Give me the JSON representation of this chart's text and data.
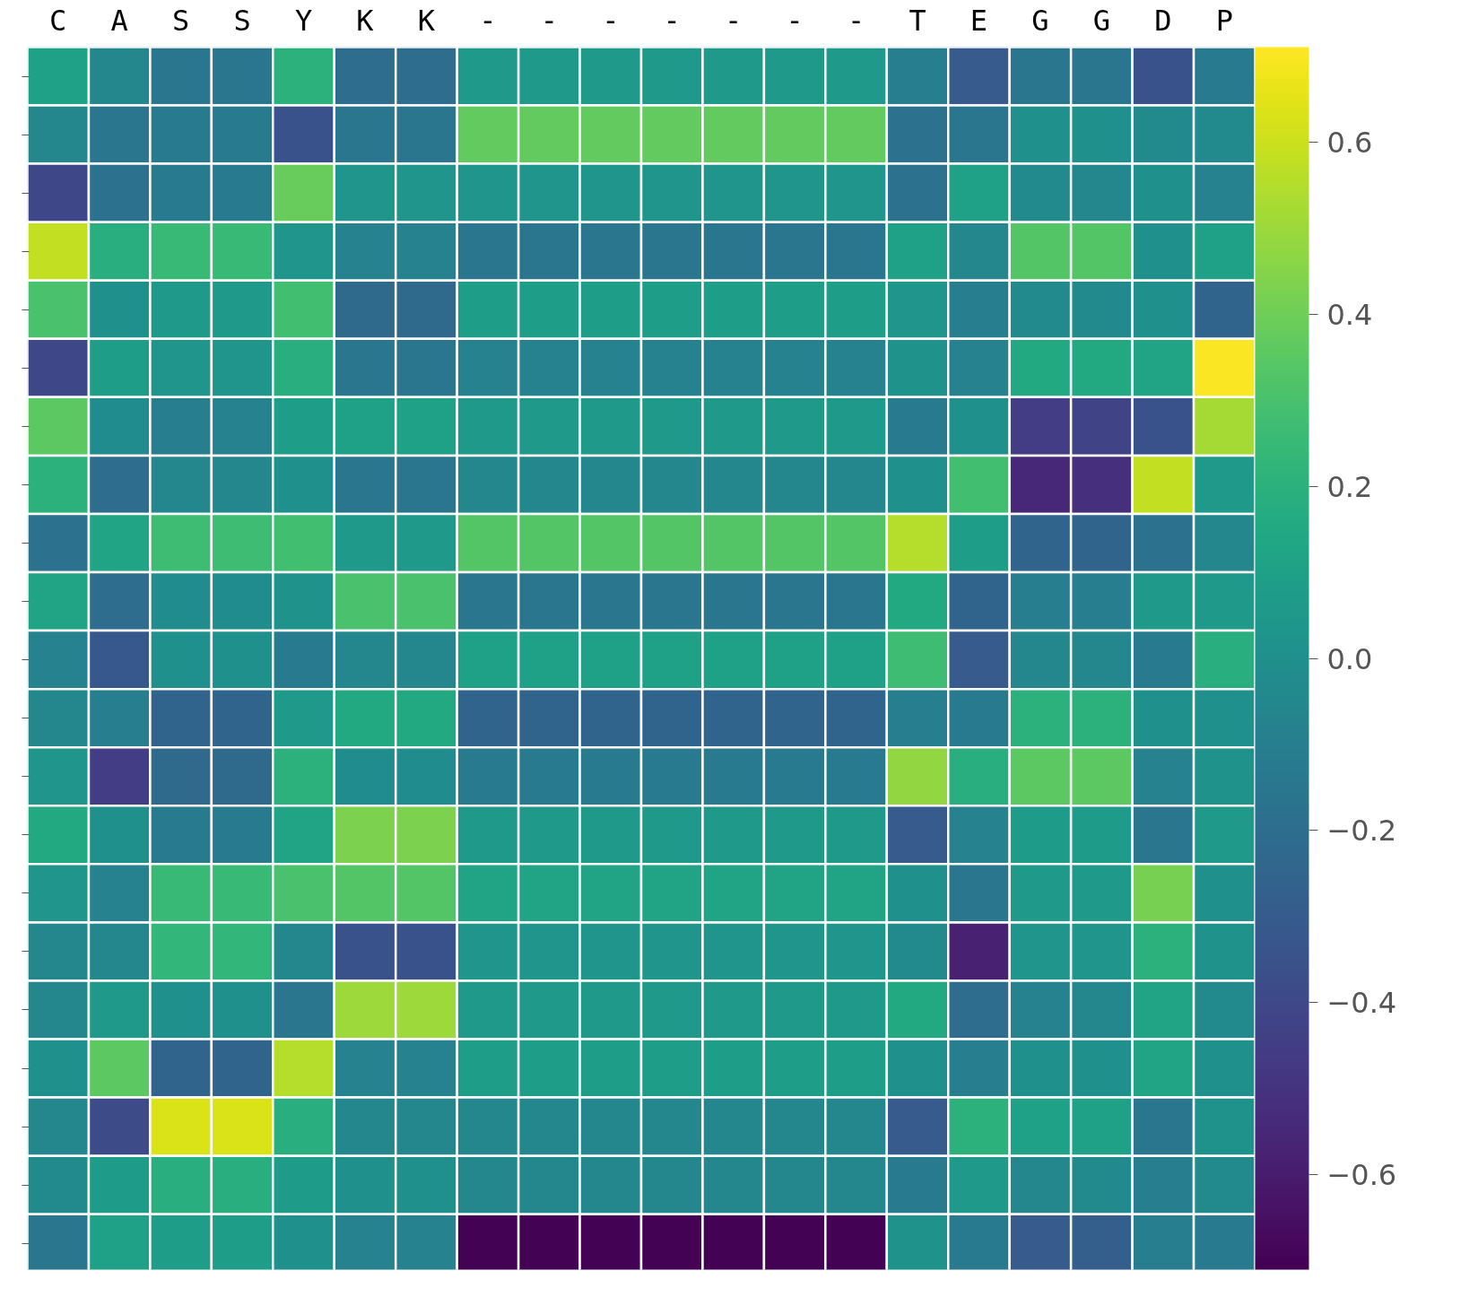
{
  "chart_data": {
    "type": "heatmap",
    "categories": [
      "C",
      "A",
      "S",
      "S",
      "Y",
      "K",
      "K",
      "-",
      "-",
      "-",
      "-",
      "-",
      "-",
      "-",
      "T",
      "E",
      "G",
      "G",
      "D",
      "P"
    ],
    "y_categories": [
      null,
      null,
      null,
      null,
      null,
      null,
      null,
      null,
      null,
      null,
      null,
      null,
      null,
      null,
      null,
      null,
      null,
      null,
      null,
      null,
      null
    ],
    "cells": [
      [
        0.1,
        -0.05,
        -0.15,
        -0.15,
        0.2,
        -0.2,
        -0.2,
        0.05,
        0.05,
        0.05,
        0.05,
        0.05,
        0.05,
        0.05,
        -0.1,
        -0.3,
        -0.15,
        -0.15,
        -0.35,
        -0.12
      ],
      [
        -0.05,
        -0.15,
        -0.12,
        -0.12,
        -0.35,
        -0.15,
        -0.15,
        0.37,
        0.37,
        0.37,
        0.37,
        0.37,
        0.37,
        0.37,
        -0.18,
        -0.15,
        0.0,
        0.0,
        -0.03,
        -0.03
      ],
      [
        -0.4,
        -0.18,
        -0.12,
        -0.12,
        0.38,
        0.03,
        0.03,
        0.03,
        0.03,
        0.03,
        0.03,
        0.03,
        0.03,
        0.03,
        -0.18,
        0.1,
        -0.03,
        -0.05,
        0.0,
        -0.08
      ],
      [
        0.58,
        0.18,
        0.25,
        0.25,
        0.03,
        -0.08,
        -0.08,
        -0.15,
        -0.15,
        -0.15,
        -0.15,
        -0.15,
        -0.15,
        -0.15,
        0.1,
        -0.05,
        0.33,
        0.33,
        0.0,
        0.1
      ],
      [
        0.3,
        0.0,
        0.05,
        0.05,
        0.28,
        -0.22,
        -0.22,
        0.08,
        0.08,
        0.08,
        0.08,
        0.08,
        0.08,
        0.08,
        0.03,
        -0.1,
        -0.03,
        -0.03,
        0.0,
        -0.25
      ],
      [
        -0.4,
        0.08,
        0.03,
        0.03,
        0.18,
        -0.15,
        -0.15,
        -0.08,
        -0.08,
        -0.08,
        -0.08,
        -0.08,
        -0.08,
        -0.08,
        0.02,
        -0.08,
        0.15,
        0.15,
        0.12,
        0.7
      ],
      [
        0.35,
        -0.02,
        -0.1,
        -0.08,
        0.08,
        0.1,
        0.1,
        0.05,
        0.05,
        0.05,
        0.05,
        0.05,
        0.05,
        0.05,
        -0.12,
        0.0,
        -0.45,
        -0.42,
        -0.35,
        0.52
      ],
      [
        0.2,
        -0.2,
        -0.05,
        -0.05,
        0.0,
        -0.15,
        -0.15,
        -0.05,
        -0.05,
        -0.05,
        -0.05,
        -0.05,
        -0.05,
        -0.05,
        0.0,
        0.28,
        -0.55,
        -0.52,
        0.58,
        0.05
      ],
      [
        -0.18,
        0.12,
        0.27,
        0.27,
        0.28,
        0.05,
        0.05,
        0.33,
        0.33,
        0.33,
        0.33,
        0.33,
        0.33,
        0.33,
        0.55,
        0.08,
        -0.25,
        -0.25,
        -0.18,
        -0.05
      ],
      [
        0.12,
        -0.2,
        -0.02,
        -0.02,
        0.02,
        0.3,
        0.3,
        -0.15,
        -0.15,
        -0.15,
        -0.15,
        -0.15,
        -0.15,
        -0.15,
        0.15,
        -0.25,
        -0.1,
        -0.1,
        0.05,
        0.05
      ],
      [
        -0.08,
        -0.32,
        0.0,
        0.0,
        -0.12,
        -0.05,
        -0.05,
        0.1,
        0.1,
        0.1,
        0.1,
        0.1,
        0.1,
        0.1,
        0.27,
        -0.3,
        -0.05,
        -0.05,
        -0.12,
        0.18
      ],
      [
        -0.05,
        -0.1,
        -0.25,
        -0.25,
        0.05,
        0.15,
        0.15,
        -0.25,
        -0.25,
        -0.25,
        -0.25,
        -0.25,
        -0.25,
        -0.25,
        -0.1,
        -0.12,
        0.2,
        0.2,
        0.0,
        0.0
      ],
      [
        0.03,
        -0.45,
        -0.22,
        -0.22,
        0.2,
        -0.02,
        -0.02,
        -0.12,
        -0.12,
        -0.12,
        -0.12,
        -0.12,
        -0.12,
        -0.12,
        0.48,
        0.18,
        0.35,
        0.35,
        -0.08,
        0.02
      ],
      [
        0.15,
        0.0,
        -0.12,
        -0.12,
        0.12,
        0.43,
        0.43,
        0.05,
        0.05,
        0.05,
        0.05,
        0.05,
        0.05,
        0.05,
        -0.3,
        -0.08,
        0.07,
        0.07,
        -0.15,
        0.05
      ],
      [
        0.03,
        -0.08,
        0.25,
        0.25,
        0.3,
        0.33,
        0.33,
        0.12,
        0.12,
        0.12,
        0.12,
        0.12,
        0.12,
        0.12,
        0.0,
        -0.15,
        0.05,
        0.05,
        0.42,
        0.0
      ],
      [
        -0.05,
        -0.05,
        0.23,
        0.23,
        -0.05,
        -0.35,
        -0.35,
        0.03,
        0.03,
        0.03,
        0.03,
        0.03,
        0.03,
        0.03,
        -0.03,
        -0.58,
        0.03,
        0.03,
        0.2,
        0.02
      ],
      [
        -0.05,
        0.05,
        0.0,
        0.0,
        -0.15,
        0.5,
        0.5,
        0.05,
        0.05,
        0.05,
        0.05,
        0.05,
        0.05,
        0.05,
        0.15,
        -0.2,
        -0.08,
        -0.05,
        0.12,
        -0.03
      ],
      [
        0.0,
        0.35,
        -0.25,
        -0.25,
        0.55,
        -0.08,
        -0.08,
        0.08,
        0.08,
        0.08,
        0.08,
        0.08,
        0.08,
        0.08,
        0.0,
        -0.1,
        0.0,
        0.0,
        0.12,
        0.0
      ],
      [
        -0.05,
        -0.38,
        0.63,
        0.63,
        0.18,
        -0.05,
        -0.05,
        -0.05,
        -0.05,
        -0.05,
        -0.05,
        -0.05,
        -0.05,
        -0.05,
        -0.3,
        0.2,
        0.1,
        0.1,
        -0.15,
        0.02
      ],
      [
        -0.03,
        0.07,
        0.18,
        0.18,
        0.07,
        0.0,
        0.0,
        -0.05,
        -0.05,
        -0.05,
        -0.05,
        -0.05,
        -0.05,
        -0.05,
        -0.12,
        0.05,
        -0.05,
        -0.03,
        -0.1,
        -0.03
      ],
      [
        -0.15,
        0.1,
        0.08,
        0.08,
        0.0,
        -0.08,
        -0.08,
        -0.7,
        -0.7,
        -0.7,
        -0.7,
        -0.7,
        -0.7,
        -0.7,
        0.02,
        -0.12,
        -0.3,
        -0.28,
        -0.1,
        -0.12
      ]
    ],
    "clim": [
      -0.71,
      0.71
    ],
    "cticks": [
      {
        "value": -0.6,
        "label": "−0.6"
      },
      {
        "value": -0.4,
        "label": "−0.4"
      },
      {
        "value": -0.2,
        "label": "−0.2"
      },
      {
        "value": 0.0,
        "label": "0.0"
      },
      0.2,
      0.4,
      0.6
    ],
    "tick_labels": "x"
  }
}
